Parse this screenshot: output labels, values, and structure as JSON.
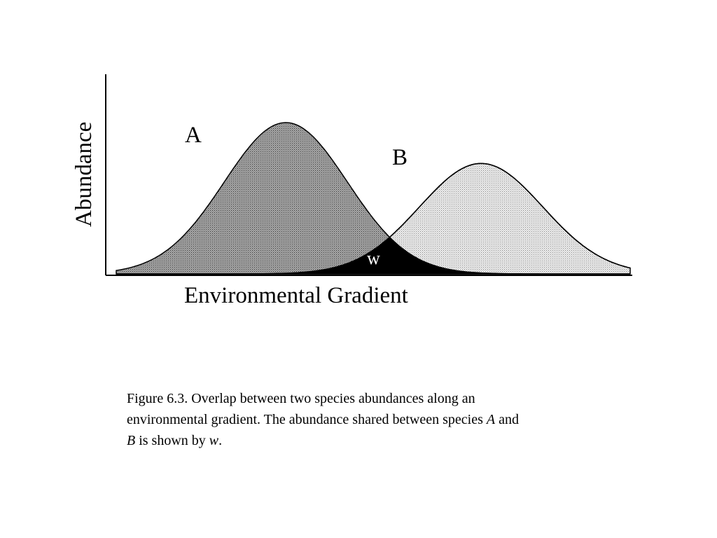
{
  "diagram": {
    "y_axis_label": "Abundance",
    "x_axis_label": "Environmental Gradient",
    "curves": [
      {
        "name": "A",
        "peak_position": 0.33,
        "peak_height": 1.0,
        "spread": 0.12
      },
      {
        "name": "B",
        "peak_position": 0.71,
        "peak_height": 0.73,
        "spread": 0.12
      }
    ],
    "overlap_label": "w",
    "colors": {
      "curve_a_fill": "#8c8c8c",
      "curve_b_fill": "#d9d9d9",
      "overlap_fill": "#000000",
      "line": "#000000"
    }
  },
  "caption": {
    "line1": "Figure 6.3.  Overlap between two species abundances along an",
    "line2_prefix": "environmental gradient.  The abundance shared between species ",
    "species_a": "A",
    "and_word": " and",
    "species_b": "B",
    "line3_middle": " is shown by ",
    "overlap_symbol": "w",
    "period": "."
  }
}
